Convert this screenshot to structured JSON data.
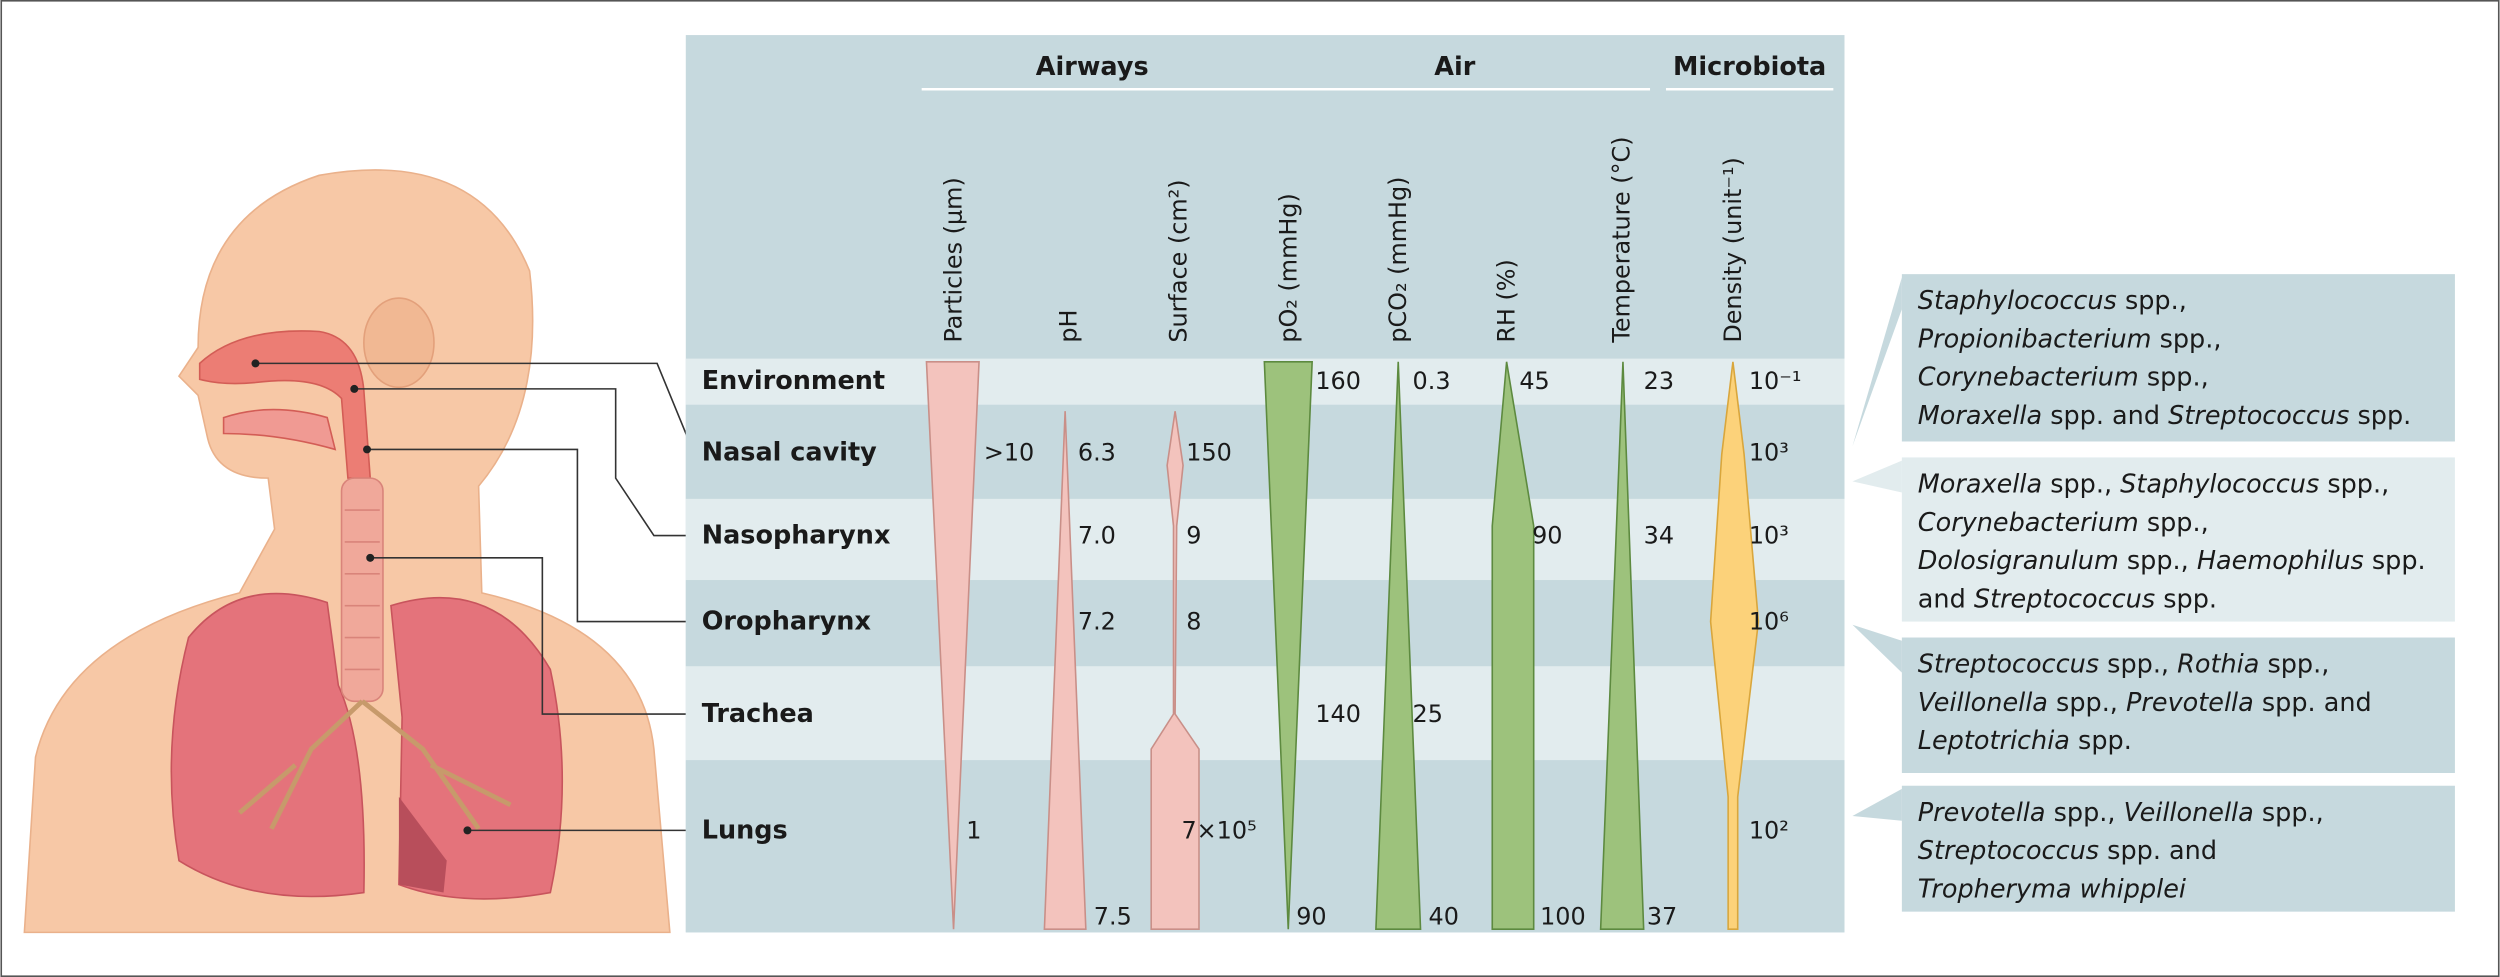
{
  "table": {
    "groups": [
      "Airways",
      "Air",
      "Microbiota"
    ],
    "columns": [
      "Particles (μm)",
      "pH",
      "Surface (cm²)",
      "pO₂ (mmHg)",
      "pCO₂ (mmHg)",
      "RH (%)",
      "Temperature (°C)",
      "Density (unit⁻¹)"
    ],
    "rows": [
      {
        "label": "Environment",
        "cells": [
          null,
          null,
          null,
          "160",
          "0.3",
          "45",
          "23",
          "10⁻¹"
        ]
      },
      {
        "label": "Nasal cavity",
        "cells": [
          ">10",
          "6.3",
          "150",
          null,
          null,
          null,
          null,
          "10³"
        ]
      },
      {
        "label": "Nasopharynx",
        "cells": [
          null,
          "7.0",
          "9",
          null,
          null,
          "90",
          "34",
          "10³"
        ]
      },
      {
        "label": "Oropharynx",
        "cells": [
          null,
          "7.2",
          "8",
          null,
          null,
          null,
          null,
          "10⁶"
        ]
      },
      {
        "label": "Trachea",
        "cells": [
          null,
          null,
          null,
          "140",
          "25",
          null,
          null,
          null
        ]
      },
      {
        "label": "Lungs",
        "cells": [
          "1",
          null,
          "7×10⁵",
          null,
          null,
          null,
          null,
          "10²"
        ]
      }
    ],
    "bottom_cells": [
      null,
      "7.5",
      null,
      "90",
      "40",
      "100",
      "37",
      null
    ]
  },
  "microbiota": [
    [
      [
        {
          "text": "Staphylococcus",
          "italic": true
        },
        {
          "text": " spp.,"
        }
      ],
      [
        {
          "text": "Propionibacterium",
          "italic": true
        },
        {
          "text": " spp.,"
        }
      ],
      [
        {
          "text": "Corynebacterium",
          "italic": true
        },
        {
          "text": " spp.,"
        }
      ],
      [
        {
          "text": "Moraxella",
          "italic": true
        },
        {
          "text": " spp. and "
        },
        {
          "text": "Streptococcus",
          "italic": true
        },
        {
          "text": " spp."
        }
      ]
    ],
    [
      [
        {
          "text": "Moraxella",
          "italic": true
        },
        {
          "text": " spp., "
        },
        {
          "text": "Staphylococcus",
          "italic": true
        },
        {
          "text": " spp.,"
        }
      ],
      [
        {
          "text": "Corynebacterium",
          "italic": true
        },
        {
          "text": " spp.,"
        }
      ],
      [
        {
          "text": "Dolosigranulum",
          "italic": true
        },
        {
          "text": " spp., "
        },
        {
          "text": "Haemophilus",
          "italic": true
        },
        {
          "text": " spp."
        }
      ],
      [
        {
          "text": "and "
        },
        {
          "text": "Streptococcus",
          "italic": true
        },
        {
          "text": " spp."
        }
      ]
    ],
    [
      [
        {
          "text": "Streptococcus",
          "italic": true
        },
        {
          "text": " spp., "
        },
        {
          "text": "Rothia",
          "italic": true
        },
        {
          "text": " spp.,"
        }
      ],
      [
        {
          "text": "Veillonella",
          "italic": true
        },
        {
          "text": " spp., "
        },
        {
          "text": "Prevotella",
          "italic": true
        },
        {
          "text": " spp. and"
        }
      ],
      [
        {
          "text": "Leptotrichia",
          "italic": true
        },
        {
          "text": " spp."
        }
      ]
    ],
    [
      [
        {
          "text": "Prevotella",
          "italic": true
        },
        {
          "text": " spp., "
        },
        {
          "text": "Veillonella",
          "italic": true
        },
        {
          "text": " spp.,"
        }
      ],
      [
        {
          "text": "Streptococcus",
          "italic": true
        },
        {
          "text": " spp. and"
        }
      ],
      [
        {
          "text": "Tropheryma whipplei",
          "italic": true
        }
      ]
    ]
  ]
}
